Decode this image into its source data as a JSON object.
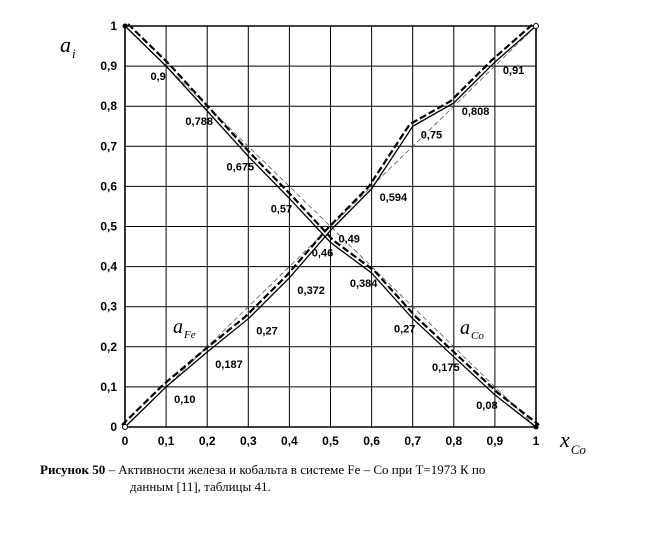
{
  "chart_data": {
    "type": "line",
    "x": [
      0,
      0.1,
      0.2,
      0.3,
      0.4,
      0.5,
      0.6,
      0.7,
      0.8,
      0.9,
      1
    ],
    "xlim": [
      0,
      1
    ],
    "ylim": [
      0,
      1
    ],
    "x_ticks": [
      "0",
      "0,1",
      "0,2",
      "0,3",
      "0,4",
      "0,5",
      "0,6",
      "0,7",
      "0,8",
      "0,9",
      "1"
    ],
    "y_ticks": [
      "0",
      "0,1",
      "0,2",
      "0,3",
      "0,4",
      "0,5",
      "0,6",
      "0,7",
      "0,8",
      "0,9",
      "1"
    ],
    "xlabel": {
      "main": "x",
      "sub": "Co"
    },
    "ylabel": {
      "main": "a",
      "sub": "i"
    },
    "grid": true,
    "series": [
      {
        "name_main": "a",
        "name_sub": "Fe",
        "values": [
          1,
          0.9,
          0.788,
          0.675,
          0.57,
          0.46,
          0.384,
          0.27,
          0.175,
          0.08,
          0
        ],
        "labels": [
          "",
          "0,9",
          "0,788",
          "0,675",
          "0,57",
          "0,46",
          "0,384",
          "0,27",
          "0,175",
          "0,08",
          ""
        ]
      },
      {
        "name_main": "a",
        "name_sub": "Co",
        "values": [
          0,
          0.1,
          0.187,
          0.27,
          0.372,
          0.49,
          0.594,
          0.75,
          0.808,
          0.91,
          1
        ],
        "labels": [
          "",
          "0,10",
          "0,187",
          "0,27",
          "0,372",
          "0,49",
          "0,594",
          "0,75",
          "0,808",
          "0,91",
          ""
        ]
      }
    ]
  },
  "caption": {
    "label": "Рисунок 50",
    "line1": " – Активности железа и кобальта в системе Fe – Co  при T=1973 К по",
    "line2": "данным [11], таблицы 41."
  }
}
